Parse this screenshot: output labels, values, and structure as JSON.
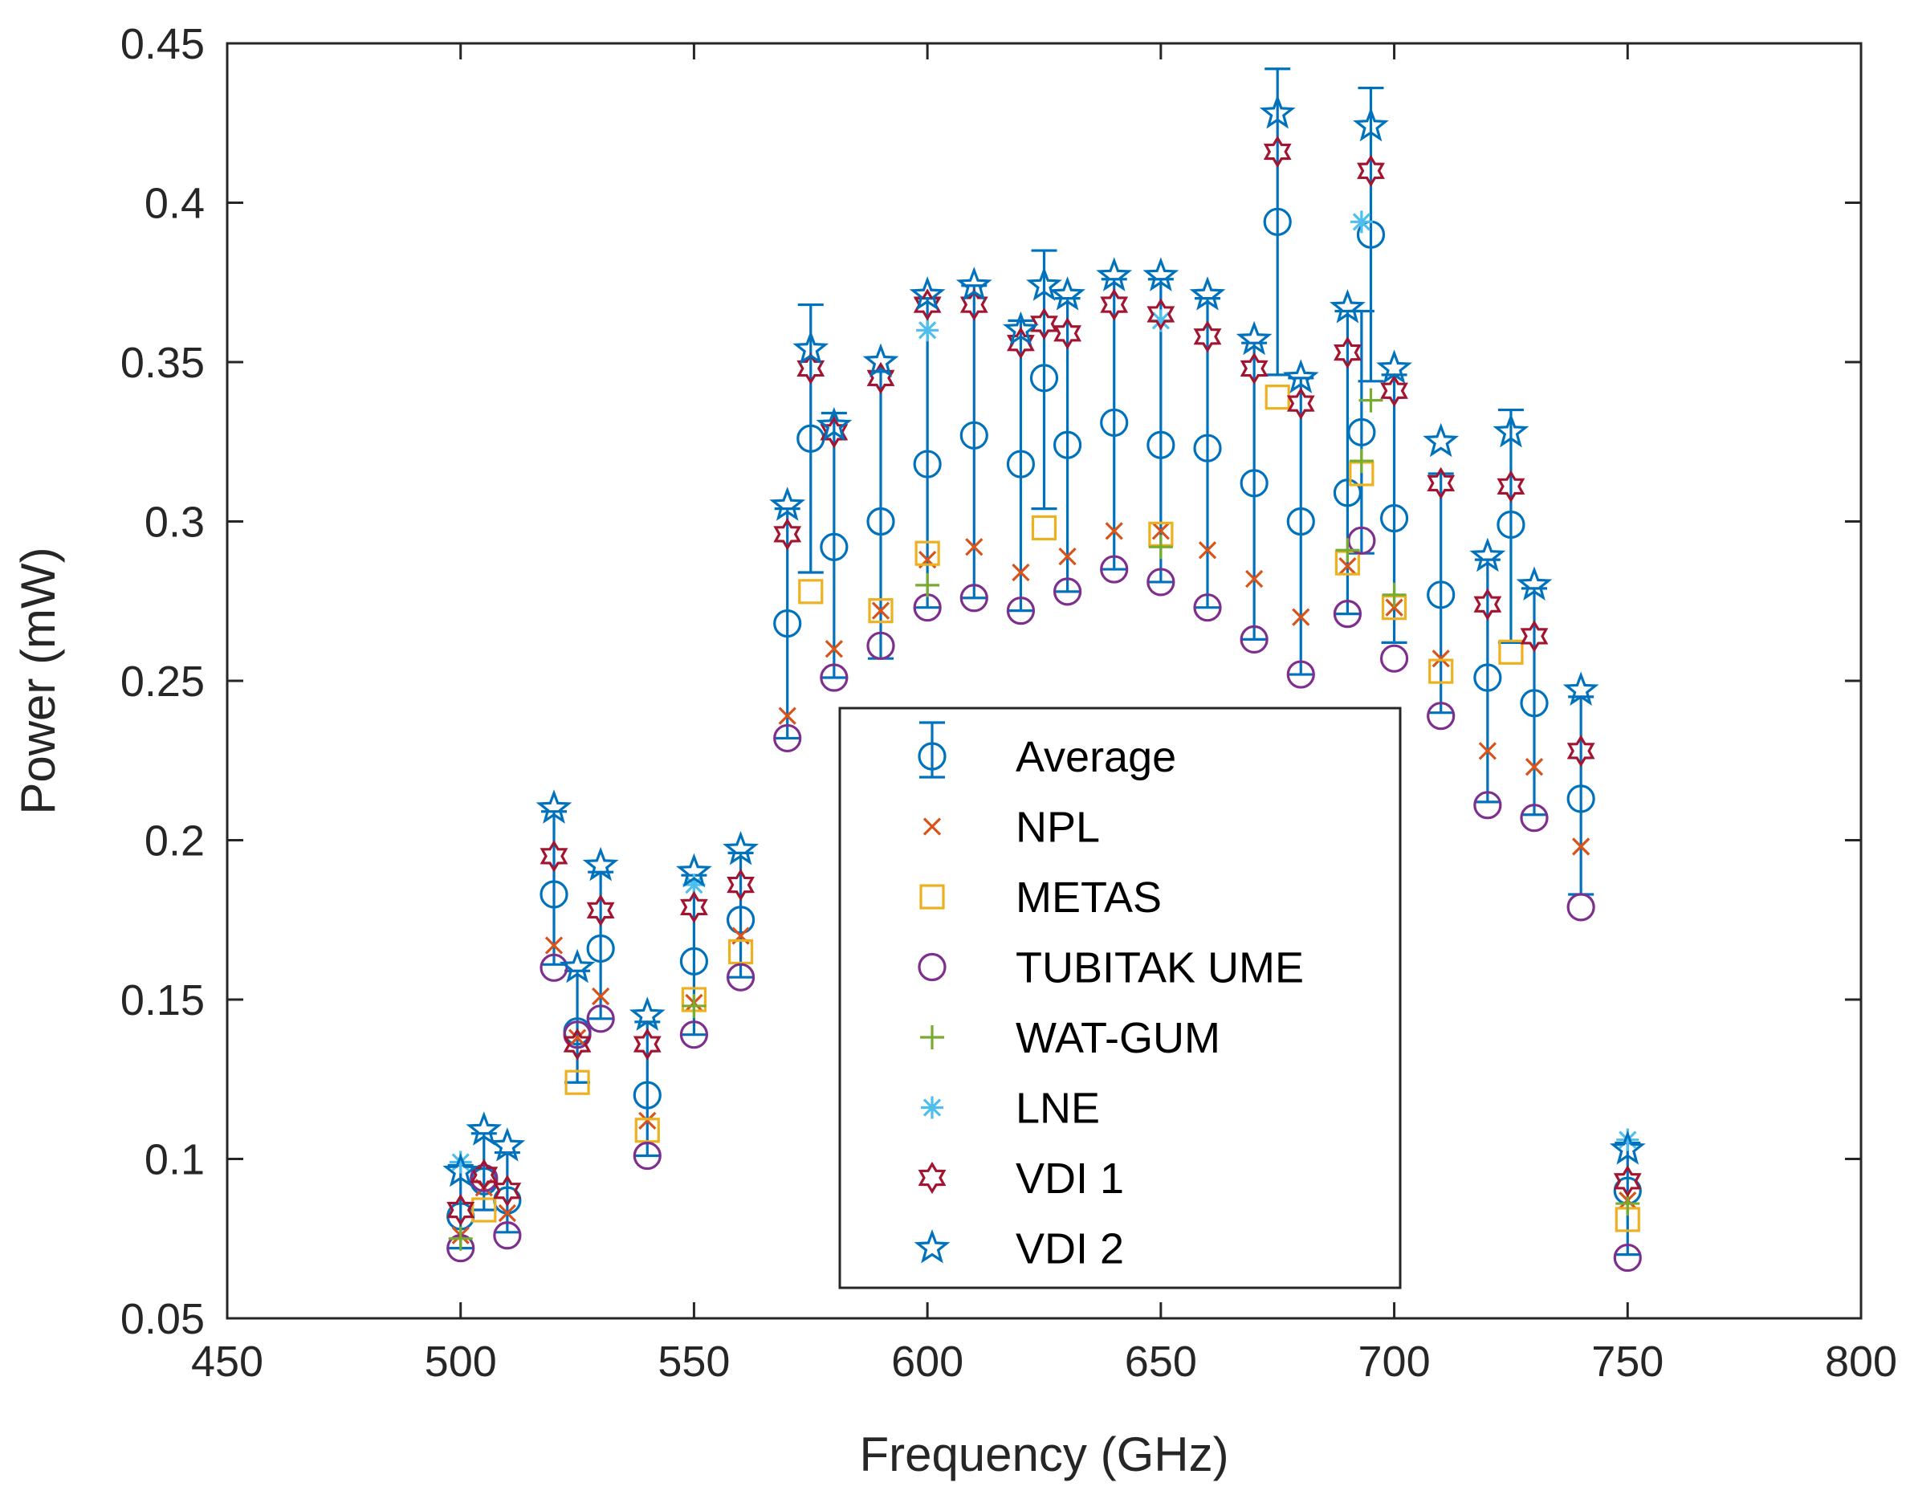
{
  "chart_data": {
    "type": "scatter",
    "xlabel": "Frequency (GHz)",
    "ylabel": "Power (mW)",
    "xlim": [
      450,
      800
    ],
    "ylim": [
      0.05,
      0.45
    ],
    "xticks": [
      450,
      500,
      550,
      600,
      650,
      700,
      750,
      800
    ],
    "yticks": [
      0.05,
      0.1,
      0.15,
      0.2,
      0.25,
      0.3,
      0.35,
      0.4,
      0.45
    ],
    "xtick_labels": [
      "450",
      "500",
      "550",
      "600",
      "650",
      "700",
      "750",
      "800"
    ],
    "ytick_labels": [
      "0.05",
      "0.1",
      "0.15",
      "0.2",
      "0.25",
      "0.3",
      "0.35",
      "0.4",
      "0.45"
    ],
    "grid": false,
    "legend_position": "center",
    "series": [
      {
        "name": "Average",
        "marker": "circle",
        "color": "#0072BD",
        "error_bars": true,
        "points": [
          {
            "x": 500,
            "y": 0.082,
            "lo": 0.072,
            "hi": 0.098
          },
          {
            "x": 505,
            "y": 0.093,
            "lo": 0.084,
            "hi": 0.108
          },
          {
            "x": 510,
            "y": 0.087,
            "lo": 0.077,
            "hi": 0.102
          },
          {
            "x": 520,
            "y": 0.183,
            "lo": 0.161,
            "hi": 0.209
          },
          {
            "x": 525,
            "y": 0.14,
            "lo": 0.124,
            "hi": 0.159
          },
          {
            "x": 530,
            "y": 0.166,
            "lo": 0.144,
            "hi": 0.19
          },
          {
            "x": 540,
            "y": 0.12,
            "lo": 0.101,
            "hi": 0.143
          },
          {
            "x": 550,
            "y": 0.162,
            "lo": 0.139,
            "hi": 0.189
          },
          {
            "x": 560,
            "y": 0.175,
            "lo": 0.157,
            "hi": 0.196
          },
          {
            "x": 570,
            "y": 0.268,
            "lo": 0.232,
            "hi": 0.304
          },
          {
            "x": 575,
            "y": 0.326,
            "lo": 0.284,
            "hi": 0.368
          },
          {
            "x": 580,
            "y": 0.292,
            "lo": 0.251,
            "hi": 0.334
          },
          {
            "x": 590,
            "y": 0.3,
            "lo": 0.257,
            "hi": 0.347
          },
          {
            "x": 600,
            "y": 0.318,
            "lo": 0.273,
            "hi": 0.37
          },
          {
            "x": 610,
            "y": 0.327,
            "lo": 0.276,
            "hi": 0.374
          },
          {
            "x": 620,
            "y": 0.318,
            "lo": 0.272,
            "hi": 0.363
          },
          {
            "x": 625,
            "y": 0.345,
            "lo": 0.304,
            "hi": 0.385
          },
          {
            "x": 630,
            "y": 0.324,
            "lo": 0.278,
            "hi": 0.37
          },
          {
            "x": 640,
            "y": 0.331,
            "lo": 0.285,
            "hi": 0.376
          },
          {
            "x": 650,
            "y": 0.324,
            "lo": 0.281,
            "hi": 0.376
          },
          {
            "x": 660,
            "y": 0.323,
            "lo": 0.273,
            "hi": 0.37
          },
          {
            "x": 670,
            "y": 0.312,
            "lo": 0.263,
            "hi": 0.356
          },
          {
            "x": 675,
            "y": 0.394,
            "lo": 0.346,
            "hi": 0.442
          },
          {
            "x": 680,
            "y": 0.3,
            "lo": 0.252,
            "hi": 0.345
          },
          {
            "x": 690,
            "y": 0.309,
            "lo": 0.271,
            "hi": 0.366
          },
          {
            "x": 693,
            "y": 0.328,
            "lo": 0.29,
            "hi": 0.366
          },
          {
            "x": 695,
            "y": 0.39,
            "lo": 0.344,
            "hi": 0.436
          },
          {
            "x": 700,
            "y": 0.301,
            "lo": 0.262,
            "hi": 0.346
          },
          {
            "x": 710,
            "y": 0.277,
            "lo": 0.24,
            "hi": 0.315
          },
          {
            "x": 720,
            "y": 0.251,
            "lo": 0.212,
            "hi": 0.288
          },
          {
            "x": 725,
            "y": 0.299,
            "lo": 0.262,
            "hi": 0.335
          },
          {
            "x": 730,
            "y": 0.243,
            "lo": 0.208,
            "hi": 0.279
          },
          {
            "x": 740,
            "y": 0.213,
            "lo": 0.183,
            "hi": 0.245
          },
          {
            "x": 750,
            "y": 0.09,
            "lo": 0.07,
            "hi": 0.105
          }
        ]
      },
      {
        "name": "NPL",
        "marker": "x",
        "color": "#D95319",
        "points": [
          {
            "x": 500,
            "y": 0.076
          },
          {
            "x": 505,
            "y": 0.091
          },
          {
            "x": 510,
            "y": 0.083
          },
          {
            "x": 520,
            "y": 0.167
          },
          {
            "x": 525,
            "y": 0.138
          },
          {
            "x": 530,
            "y": 0.151
          },
          {
            "x": 540,
            "y": 0.112
          },
          {
            "x": 550,
            "y": 0.149
          },
          {
            "x": 560,
            "y": 0.17
          },
          {
            "x": 570,
            "y": 0.239
          },
          {
            "x": 580,
            "y": 0.26
          },
          {
            "x": 590,
            "y": 0.272
          },
          {
            "x": 600,
            "y": 0.288
          },
          {
            "x": 610,
            "y": 0.292
          },
          {
            "x": 620,
            "y": 0.284
          },
          {
            "x": 630,
            "y": 0.289
          },
          {
            "x": 640,
            "y": 0.297
          },
          {
            "x": 650,
            "y": 0.297
          },
          {
            "x": 660,
            "y": 0.291
          },
          {
            "x": 670,
            "y": 0.282
          },
          {
            "x": 680,
            "y": 0.27
          },
          {
            "x": 690,
            "y": 0.286
          },
          {
            "x": 700,
            "y": 0.273
          },
          {
            "x": 710,
            "y": 0.257
          },
          {
            "x": 720,
            "y": 0.228
          },
          {
            "x": 730,
            "y": 0.223
          },
          {
            "x": 740,
            "y": 0.198
          },
          {
            "x": 750,
            "y": 0.087
          }
        ]
      },
      {
        "name": "METAS",
        "marker": "square",
        "color": "#EDB120",
        "points": [
          {
            "x": 505,
            "y": 0.084
          },
          {
            "x": 525,
            "y": 0.124
          },
          {
            "x": 540,
            "y": 0.109
          },
          {
            "x": 550,
            "y": 0.15
          },
          {
            "x": 560,
            "y": 0.165
          },
          {
            "x": 575,
            "y": 0.278
          },
          {
            "x": 590,
            "y": 0.272
          },
          {
            "x": 600,
            "y": 0.29
          },
          {
            "x": 625,
            "y": 0.298
          },
          {
            "x": 650,
            "y": 0.296
          },
          {
            "x": 675,
            "y": 0.339
          },
          {
            "x": 690,
            "y": 0.287
          },
          {
            "x": 693,
            "y": 0.315
          },
          {
            "x": 700,
            "y": 0.273
          },
          {
            "x": 710,
            "y": 0.253
          },
          {
            "x": 725,
            "y": 0.259
          },
          {
            "x": 750,
            "y": 0.081
          }
        ]
      },
      {
        "name": "TUBITAK UME",
        "marker": "circle",
        "color": "#7E2F8E",
        "points": [
          {
            "x": 500,
            "y": 0.072
          },
          {
            "x": 505,
            "y": 0.094
          },
          {
            "x": 510,
            "y": 0.076
          },
          {
            "x": 520,
            "y": 0.16
          },
          {
            "x": 525,
            "y": 0.139
          },
          {
            "x": 530,
            "y": 0.144
          },
          {
            "x": 540,
            "y": 0.101
          },
          {
            "x": 550,
            "y": 0.139
          },
          {
            "x": 560,
            "y": 0.157
          },
          {
            "x": 570,
            "y": 0.232
          },
          {
            "x": 580,
            "y": 0.251
          },
          {
            "x": 590,
            "y": 0.261
          },
          {
            "x": 600,
            "y": 0.273
          },
          {
            "x": 610,
            "y": 0.276
          },
          {
            "x": 620,
            "y": 0.272
          },
          {
            "x": 630,
            "y": 0.278
          },
          {
            "x": 640,
            "y": 0.285
          },
          {
            "x": 650,
            "y": 0.281
          },
          {
            "x": 660,
            "y": 0.273
          },
          {
            "x": 670,
            "y": 0.263
          },
          {
            "x": 680,
            "y": 0.252
          },
          {
            "x": 690,
            "y": 0.271
          },
          {
            "x": 693,
            "y": 0.294
          },
          {
            "x": 700,
            "y": 0.257
          },
          {
            "x": 710,
            "y": 0.239
          },
          {
            "x": 720,
            "y": 0.211
          },
          {
            "x": 730,
            "y": 0.207
          },
          {
            "x": 740,
            "y": 0.179
          },
          {
            "x": 750,
            "y": 0.069
          }
        ]
      },
      {
        "name": "WAT-GUM",
        "marker": "plus",
        "color": "#77AC30",
        "points": [
          {
            "x": 500,
            "y": 0.075
          },
          {
            "x": 550,
            "y": 0.148
          },
          {
            "x": 600,
            "y": 0.28
          },
          {
            "x": 650,
            "y": 0.292
          },
          {
            "x": 690,
            "y": 0.291
          },
          {
            "x": 693,
            "y": 0.319
          },
          {
            "x": 695,
            "y": 0.338
          },
          {
            "x": 700,
            "y": 0.277
          },
          {
            "x": 750,
            "y": 0.086
          }
        ]
      },
      {
        "name": "LNE",
        "marker": "asterisk",
        "color": "#4DBEEE",
        "points": [
          {
            "x": 500,
            "y": 0.099
          },
          {
            "x": 550,
            "y": 0.186
          },
          {
            "x": 600,
            "y": 0.36
          },
          {
            "x": 650,
            "y": 0.363
          },
          {
            "x": 693,
            "y": 0.394
          },
          {
            "x": 750,
            "y": 0.106
          }
        ]
      },
      {
        "name": "VDI 1",
        "marker": "hexagram",
        "color": "#A2142F",
        "points": [
          {
            "x": 500,
            "y": 0.084
          },
          {
            "x": 505,
            "y": 0.095
          },
          {
            "x": 510,
            "y": 0.09
          },
          {
            "x": 520,
            "y": 0.195
          },
          {
            "x": 525,
            "y": 0.136
          },
          {
            "x": 530,
            "y": 0.178
          },
          {
            "x": 540,
            "y": 0.136
          },
          {
            "x": 550,
            "y": 0.179
          },
          {
            "x": 560,
            "y": 0.186
          },
          {
            "x": 570,
            "y": 0.296
          },
          {
            "x": 575,
            "y": 0.348
          },
          {
            "x": 580,
            "y": 0.328
          },
          {
            "x": 590,
            "y": 0.345
          },
          {
            "x": 600,
            "y": 0.368
          },
          {
            "x": 610,
            "y": 0.368
          },
          {
            "x": 620,
            "y": 0.356
          },
          {
            "x": 625,
            "y": 0.362
          },
          {
            "x": 630,
            "y": 0.359
          },
          {
            "x": 640,
            "y": 0.368
          },
          {
            "x": 650,
            "y": 0.365
          },
          {
            "x": 660,
            "y": 0.358
          },
          {
            "x": 670,
            "y": 0.348
          },
          {
            "x": 675,
            "y": 0.416
          },
          {
            "x": 680,
            "y": 0.337
          },
          {
            "x": 690,
            "y": 0.353
          },
          {
            "x": 695,
            "y": 0.41
          },
          {
            "x": 700,
            "y": 0.341
          },
          {
            "x": 710,
            "y": 0.312
          },
          {
            "x": 720,
            "y": 0.274
          },
          {
            "x": 725,
            "y": 0.311
          },
          {
            "x": 730,
            "y": 0.264
          },
          {
            "x": 740,
            "y": 0.228
          },
          {
            "x": 750,
            "y": 0.093
          }
        ]
      },
      {
        "name": "VDI 2",
        "marker": "pentagram",
        "color": "#0072BD",
        "points": [
          {
            "x": 500,
            "y": 0.096
          },
          {
            "x": 505,
            "y": 0.109
          },
          {
            "x": 510,
            "y": 0.104
          },
          {
            "x": 520,
            "y": 0.21
          },
          {
            "x": 525,
            "y": 0.16
          },
          {
            "x": 530,
            "y": 0.192
          },
          {
            "x": 540,
            "y": 0.145
          },
          {
            "x": 550,
            "y": 0.19
          },
          {
            "x": 560,
            "y": 0.197
          },
          {
            "x": 570,
            "y": 0.305
          },
          {
            "x": 575,
            "y": 0.354
          },
          {
            "x": 580,
            "y": 0.33
          },
          {
            "x": 590,
            "y": 0.35
          },
          {
            "x": 600,
            "y": 0.371
          },
          {
            "x": 610,
            "y": 0.374
          },
          {
            "x": 620,
            "y": 0.36
          },
          {
            "x": 625,
            "y": 0.374
          },
          {
            "x": 630,
            "y": 0.371
          },
          {
            "x": 640,
            "y": 0.377
          },
          {
            "x": 650,
            "y": 0.377
          },
          {
            "x": 660,
            "y": 0.371
          },
          {
            "x": 670,
            "y": 0.357
          },
          {
            "x": 675,
            "y": 0.428
          },
          {
            "x": 680,
            "y": 0.345
          },
          {
            "x": 690,
            "y": 0.367
          },
          {
            "x": 695,
            "y": 0.424
          },
          {
            "x": 700,
            "y": 0.348
          },
          {
            "x": 710,
            "y": 0.325
          },
          {
            "x": 720,
            "y": 0.289
          },
          {
            "x": 725,
            "y": 0.328
          },
          {
            "x": 730,
            "y": 0.28
          },
          {
            "x": 740,
            "y": 0.247
          },
          {
            "x": 750,
            "y": 0.103
          }
        ]
      }
    ]
  }
}
